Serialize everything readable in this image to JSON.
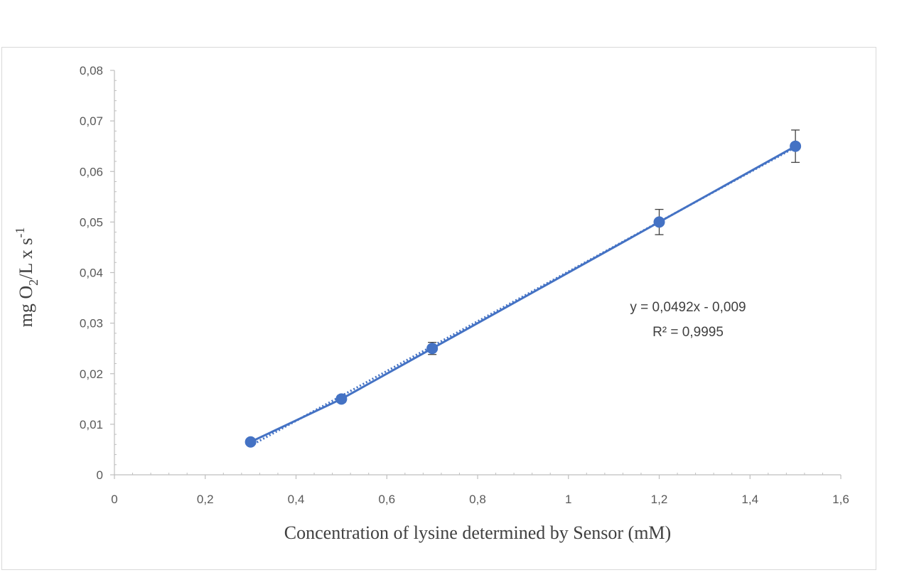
{
  "chart_data": {
    "type": "scatter",
    "xlabel": "Concentration of lysine determined by Sensor (mM)",
    "ylabel": {
      "prefix": "mg O",
      "sub": "2",
      "middle": "/L x s",
      "sup": "-1"
    },
    "xlim": [
      0,
      1.6
    ],
    "ylim": [
      0,
      0.08
    ],
    "x_ticks": [
      "0",
      "0,2",
      "0,4",
      "0,6",
      "0,8",
      "1",
      "1,2",
      "1,4",
      "1,6"
    ],
    "y_ticks": [
      "0",
      "0,01",
      "0,02",
      "0,03",
      "0,04",
      "0,05",
      "0,06",
      "0,07",
      "0,08"
    ],
    "x_tick_values": [
      0,
      0.2,
      0.4,
      0.6,
      0.8,
      1.0,
      1.2,
      1.4,
      1.6
    ],
    "y_tick_values": [
      0,
      0.01,
      0.02,
      0.03,
      0.04,
      0.05,
      0.06,
      0.07,
      0.08
    ],
    "series": [
      {
        "x": [
          0.3,
          0.5,
          0.7,
          1.2,
          1.5
        ],
        "y": [
          0.0065,
          0.015,
          0.025,
          0.05,
          0.065
        ],
        "error": [
          0.0004,
          0.0007,
          0.0012,
          0.0025,
          0.0032
        ],
        "color": "#4472c4"
      }
    ],
    "trendline": {
      "slope": 0.0492,
      "intercept": -0.009,
      "style": "dotted",
      "color": "#4472c4"
    },
    "annotations": [
      "y = 0,0492x - 0,009",
      "R² = 0,9995"
    ],
    "grid": false,
    "legend": "none"
  }
}
